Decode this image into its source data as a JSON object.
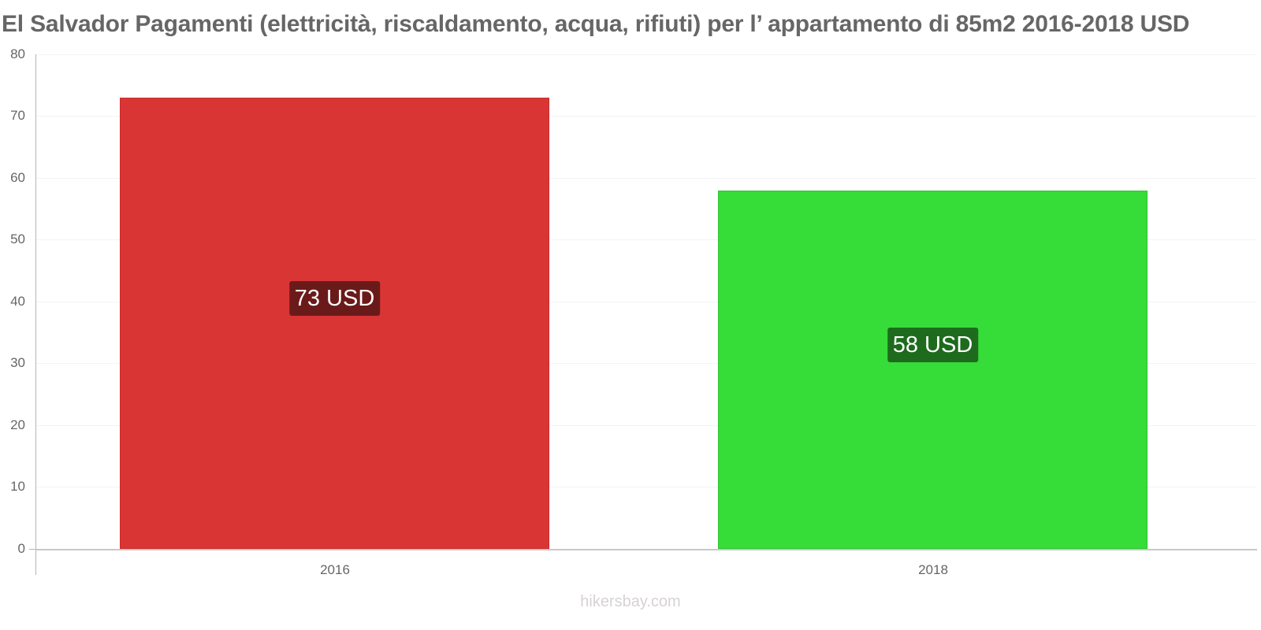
{
  "title": "El Salvador Pagamenti (elettricità, riscaldamento, acqua, rifiuti) per l’ appartamento di 85m2 2016-2018 USD",
  "watermark": "hikersbay.com",
  "y_axis": {
    "ticks": [
      "0",
      "10",
      "20",
      "30",
      "40",
      "50",
      "60",
      "70",
      "80"
    ]
  },
  "x_axis": {
    "ticks": [
      "2016",
      "2018"
    ]
  },
  "bars": [
    {
      "category": "2016",
      "label": "73 USD",
      "color": "#da3535",
      "label_bg": "#6b1a1a"
    },
    {
      "category": "2018",
      "label": "58 USD",
      "color": "#36dc38",
      "label_bg": "#1e6b1e"
    }
  ],
  "chart_data": {
    "type": "bar",
    "title": "El Salvador Pagamenti (elettricità, riscaldamento, acqua, rifiuti) per l’ appartamento di 85m2 2016-2018 USD",
    "categories": [
      "2016",
      "2018"
    ],
    "values": [
      73,
      58
    ],
    "data_labels": [
      "73 USD",
      "58 USD"
    ],
    "colors": [
      "#da3535",
      "#36dc38"
    ],
    "xlabel": "",
    "ylabel": "",
    "ylim": [
      0,
      80
    ],
    "yticks": [
      0,
      10,
      20,
      30,
      40,
      50,
      60,
      70,
      80
    ],
    "grid": true,
    "legend": null
  }
}
